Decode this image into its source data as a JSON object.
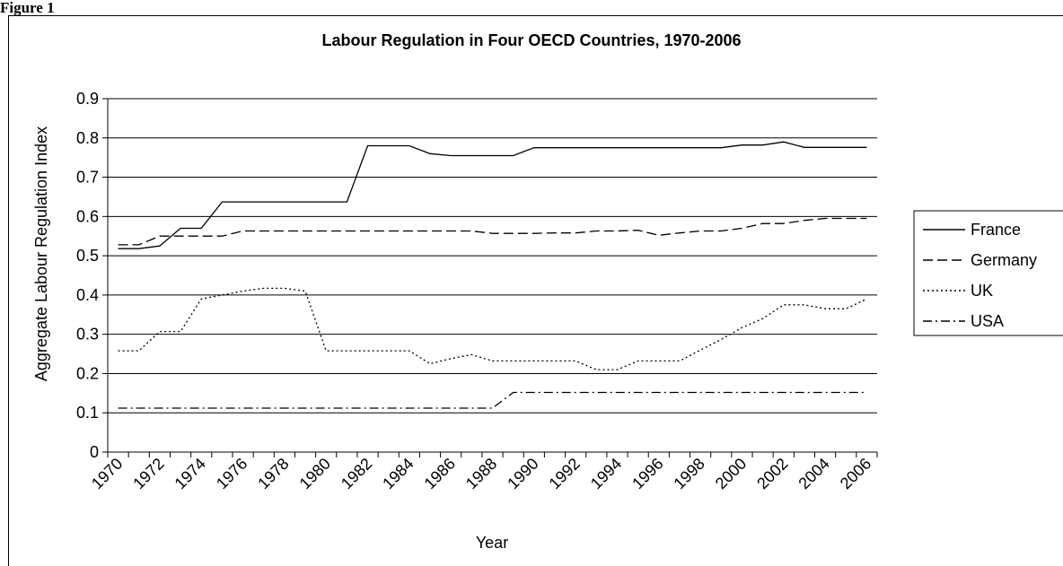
{
  "figure_label": "Figure 1",
  "chart_data": {
    "type": "line",
    "title": "Labour Regulation in Four OECD Countries, 1970-2006",
    "xlabel": "Year",
    "ylabel": "Aggregate Labour Regulation Index",
    "ylim": [
      0,
      0.9
    ],
    "yticks": [
      "0",
      "0.1",
      "0.2",
      "0.3",
      "0.4",
      "0.5",
      "0.6",
      "0.7",
      "0.8",
      "0.9"
    ],
    "xticks": [
      "1970",
      "1972",
      "1974",
      "1976",
      "1978",
      "1980",
      "1982",
      "1984",
      "1986",
      "1988",
      "1990",
      "1992",
      "1994",
      "1996",
      "1998",
      "2000",
      "2002",
      "2004",
      "2006"
    ],
    "x": [
      1970,
      1971,
      1972,
      1973,
      1974,
      1975,
      1976,
      1977,
      1978,
      1979,
      1980,
      1981,
      1982,
      1983,
      1984,
      1985,
      1986,
      1987,
      1988,
      1989,
      1990,
      1991,
      1992,
      1993,
      1994,
      1995,
      1996,
      1997,
      1998,
      1999,
      2000,
      2001,
      2002,
      2003,
      2004,
      2005,
      2006
    ],
    "grid": "horizontal",
    "legend_position": "right",
    "series": [
      {
        "name": "France",
        "dash": "solid",
        "values": [
          0.518,
          0.518,
          0.525,
          0.57,
          0.57,
          0.637,
          0.637,
          0.637,
          0.637,
          0.637,
          0.637,
          0.637,
          0.78,
          0.78,
          0.78,
          0.76,
          0.755,
          0.755,
          0.755,
          0.755,
          0.775,
          0.775,
          0.775,
          0.775,
          0.775,
          0.775,
          0.775,
          0.775,
          0.775,
          0.775,
          0.782,
          0.782,
          0.79,
          0.776,
          0.776,
          0.776,
          0.776
        ]
      },
      {
        "name": "Germany",
        "dash": "dashed",
        "values": [
          0.528,
          0.528,
          0.55,
          0.55,
          0.55,
          0.55,
          0.563,
          0.563,
          0.563,
          0.563,
          0.563,
          0.563,
          0.563,
          0.563,
          0.563,
          0.563,
          0.563,
          0.563,
          0.557,
          0.557,
          0.557,
          0.558,
          0.558,
          0.563,
          0.563,
          0.565,
          0.552,
          0.558,
          0.563,
          0.563,
          0.57,
          0.582,
          0.582,
          0.59,
          0.595,
          0.595,
          0.595
        ]
      },
      {
        "name": "UK",
        "dash": "dotted",
        "values": [
          0.258,
          0.258,
          0.307,
          0.307,
          0.39,
          0.4,
          0.41,
          0.417,
          0.417,
          0.41,
          0.258,
          0.258,
          0.258,
          0.258,
          0.258,
          0.225,
          0.238,
          0.248,
          0.232,
          0.232,
          0.232,
          0.232,
          0.232,
          0.21,
          0.21,
          0.232,
          0.232,
          0.232,
          0.26,
          0.287,
          0.317,
          0.34,
          0.375,
          0.375,
          0.365,
          0.365,
          0.39
        ]
      },
      {
        "name": "USA",
        "dash": "dashdot",
        "values": [
          0.112,
          0.112,
          0.112,
          0.112,
          0.112,
          0.112,
          0.112,
          0.112,
          0.112,
          0.112,
          0.112,
          0.112,
          0.112,
          0.112,
          0.112,
          0.112,
          0.112,
          0.112,
          0.112,
          0.152,
          0.152,
          0.152,
          0.152,
          0.152,
          0.152,
          0.152,
          0.152,
          0.152,
          0.152,
          0.152,
          0.152,
          0.152,
          0.152,
          0.152,
          0.152,
          0.152,
          0.152
        ]
      }
    ]
  }
}
